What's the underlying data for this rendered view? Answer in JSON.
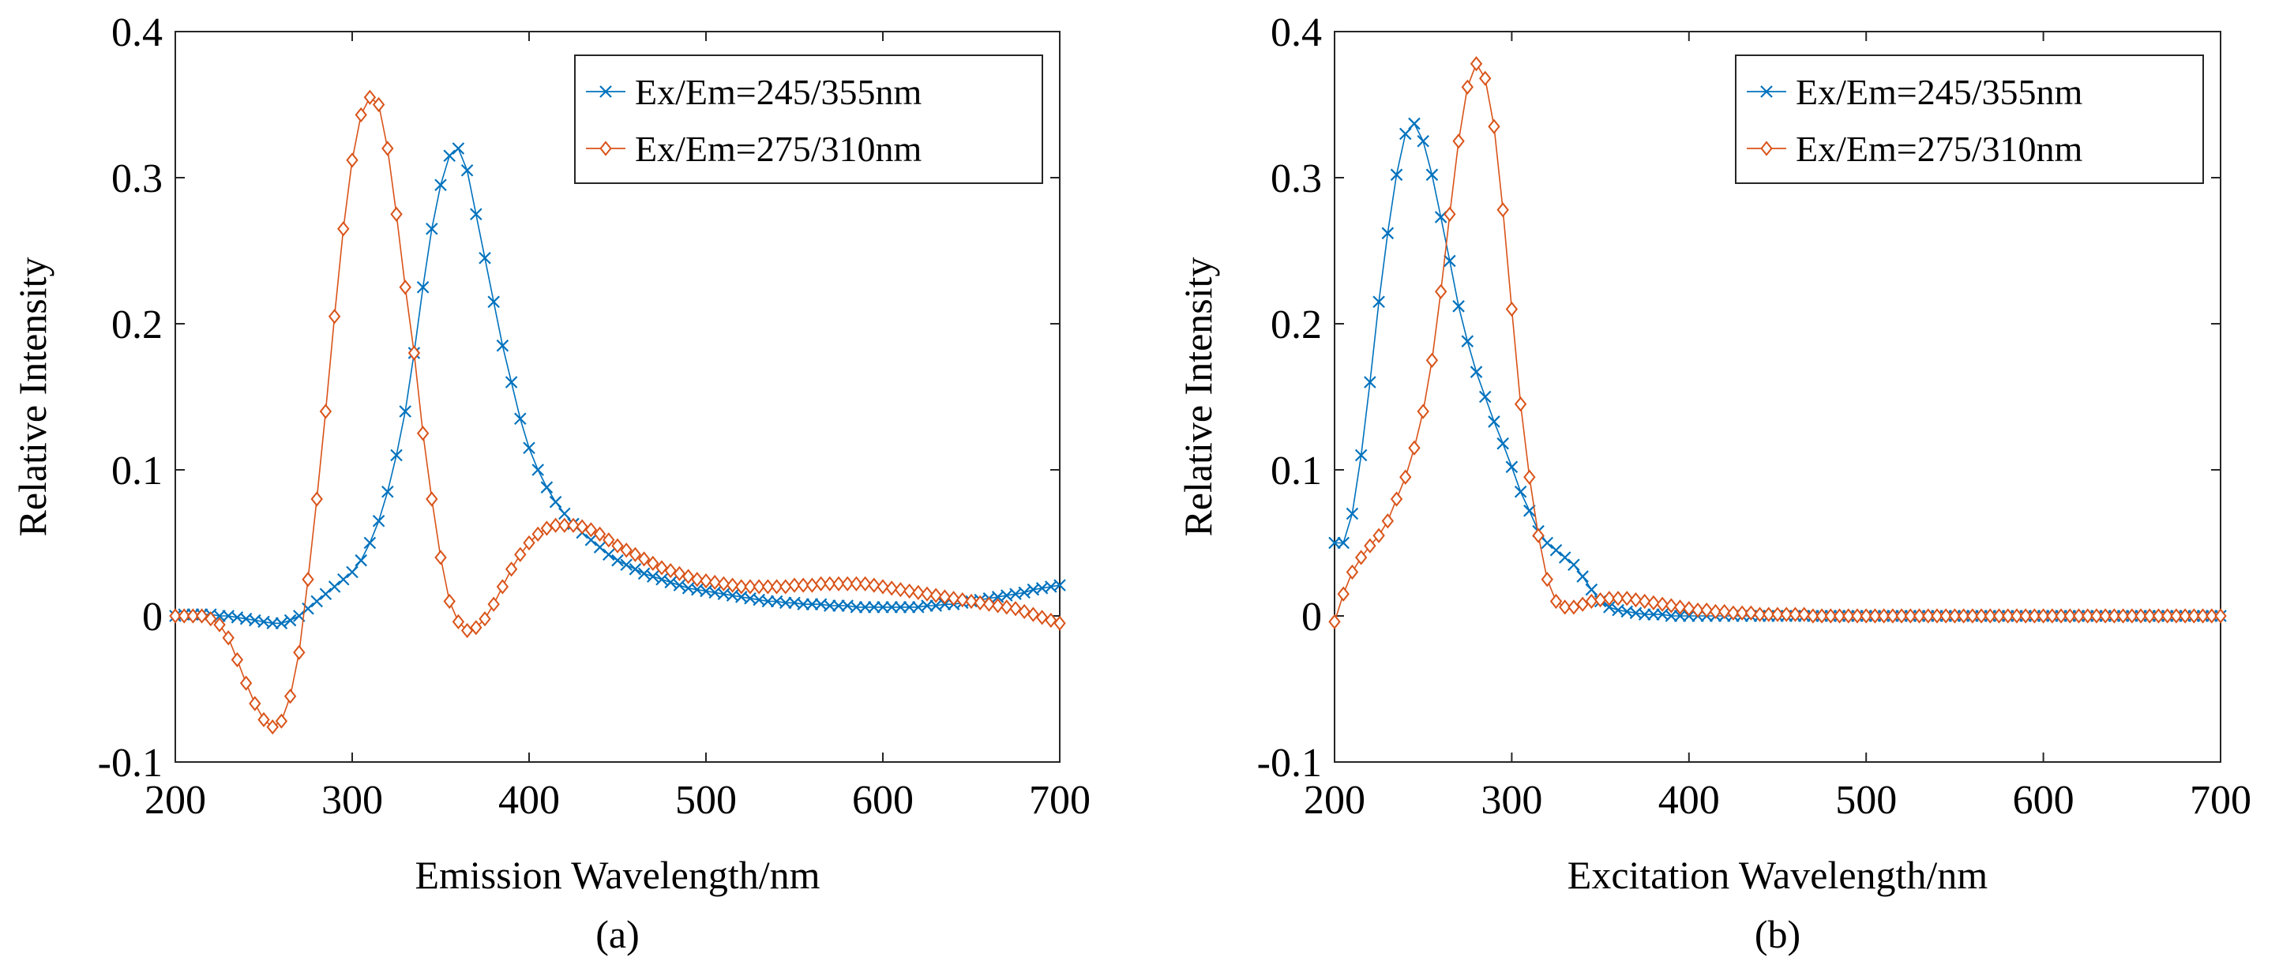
{
  "chart_data": [
    {
      "type": "line",
      "caption": "(a)",
      "xlabel": "Emission Wavelength/nm",
      "ylabel": "Relative Intensity",
      "xlim": [
        200,
        700
      ],
      "ylim": [
        -0.1,
        0.4
      ],
      "xticks": [
        200,
        300,
        400,
        500,
        600,
        700
      ],
      "xtick_labels": [
        "200",
        "300",
        "400",
        "500",
        "600",
        "700"
      ],
      "yticks": [
        -0.1,
        0,
        0.1,
        0.2,
        0.3,
        0.4
      ],
      "ytick_labels": [
        "-0.1",
        "0",
        "0.1",
        "0.2",
        "0.3",
        "0.4"
      ],
      "grid": false,
      "legend_position": "top-right",
      "series": [
        {
          "name": "Ex/Em=245/355nm",
          "color": "#0072BD",
          "marker": "x",
          "x": [
            200,
            205,
            210,
            215,
            220,
            225,
            230,
            235,
            240,
            245,
            250,
            255,
            260,
            265,
            270,
            275,
            280,
            285,
            290,
            295,
            300,
            305,
            310,
            315,
            320,
            325,
            330,
            335,
            340,
            345,
            350,
            355,
            360,
            365,
            370,
            375,
            380,
            385,
            390,
            395,
            400,
            405,
            410,
            415,
            420,
            425,
            430,
            435,
            440,
            445,
            450,
            455,
            460,
            465,
            470,
            475,
            480,
            485,
            490,
            495,
            500,
            505,
            510,
            515,
            520,
            525,
            530,
            535,
            540,
            545,
            550,
            555,
            560,
            565,
            570,
            575,
            580,
            585,
            590,
            595,
            600,
            605,
            610,
            615,
            620,
            625,
            630,
            635,
            640,
            645,
            650,
            655,
            660,
            665,
            670,
            675,
            680,
            685,
            690,
            695,
            700
          ],
          "y": [
            0.0,
            0.001,
            0.001,
            0.001,
            0.001,
            0.0,
            0.0,
            -0.001,
            -0.002,
            -0.003,
            -0.004,
            -0.005,
            -0.005,
            -0.003,
            0.0,
            0.005,
            0.01,
            0.015,
            0.02,
            0.025,
            0.03,
            0.038,
            0.05,
            0.065,
            0.085,
            0.11,
            0.14,
            0.18,
            0.225,
            0.265,
            0.295,
            0.315,
            0.32,
            0.305,
            0.275,
            0.245,
            0.215,
            0.185,
            0.16,
            0.135,
            0.115,
            0.1,
            0.088,
            0.078,
            0.07,
            0.063,
            0.057,
            0.052,
            0.047,
            0.042,
            0.038,
            0.035,
            0.032,
            0.029,
            0.027,
            0.025,
            0.023,
            0.021,
            0.019,
            0.018,
            0.017,
            0.016,
            0.015,
            0.014,
            0.013,
            0.012,
            0.011,
            0.01,
            0.01,
            0.009,
            0.009,
            0.008,
            0.008,
            0.008,
            0.007,
            0.007,
            0.007,
            0.006,
            0.006,
            0.006,
            0.006,
            0.006,
            0.006,
            0.006,
            0.006,
            0.007,
            0.007,
            0.008,
            0.008,
            0.009,
            0.01,
            0.011,
            0.012,
            0.013,
            0.014,
            0.015,
            0.016,
            0.018,
            0.019,
            0.02,
            0.021
          ]
        },
        {
          "name": "Ex/Em=275/310nm",
          "color": "#D95319",
          "marker": "diamond",
          "x": [
            200,
            205,
            210,
            215,
            220,
            225,
            230,
            235,
            240,
            245,
            250,
            255,
            260,
            265,
            270,
            275,
            280,
            285,
            290,
            295,
            300,
            305,
            310,
            315,
            320,
            325,
            330,
            335,
            340,
            345,
            350,
            355,
            360,
            365,
            370,
            375,
            380,
            385,
            390,
            395,
            400,
            405,
            410,
            415,
            420,
            425,
            430,
            435,
            440,
            445,
            450,
            455,
            460,
            465,
            470,
            475,
            480,
            485,
            490,
            495,
            500,
            505,
            510,
            515,
            520,
            525,
            530,
            535,
            540,
            545,
            550,
            555,
            560,
            565,
            570,
            575,
            580,
            585,
            590,
            595,
            600,
            605,
            610,
            615,
            620,
            625,
            630,
            635,
            640,
            645,
            650,
            655,
            660,
            665,
            670,
            675,
            680,
            685,
            690,
            695,
            700
          ],
          "y": [
            0.0,
            0.0,
            0.0,
            0.0,
            -0.002,
            -0.006,
            -0.015,
            -0.03,
            -0.046,
            -0.06,
            -0.071,
            -0.076,
            -0.072,
            -0.055,
            -0.025,
            0.025,
            0.08,
            0.14,
            0.205,
            0.265,
            0.312,
            0.343,
            0.355,
            0.35,
            0.32,
            0.275,
            0.225,
            0.18,
            0.125,
            0.08,
            0.04,
            0.01,
            -0.004,
            -0.01,
            -0.008,
            -0.002,
            0.008,
            0.02,
            0.032,
            0.042,
            0.05,
            0.056,
            0.06,
            0.062,
            0.062,
            0.062,
            0.061,
            0.059,
            0.056,
            0.052,
            0.048,
            0.045,
            0.042,
            0.039,
            0.036,
            0.033,
            0.031,
            0.029,
            0.027,
            0.025,
            0.024,
            0.023,
            0.022,
            0.021,
            0.02,
            0.02,
            0.02,
            0.02,
            0.02,
            0.02,
            0.021,
            0.021,
            0.021,
            0.022,
            0.022,
            0.022,
            0.022,
            0.022,
            0.022,
            0.021,
            0.02,
            0.019,
            0.018,
            0.017,
            0.016,
            0.015,
            0.014,
            0.013,
            0.012,
            0.011,
            0.01,
            0.009,
            0.008,
            0.007,
            0.006,
            0.005,
            0.003,
            0.001,
            -0.001,
            -0.003,
            -0.005
          ]
        }
      ]
    },
    {
      "type": "line",
      "caption": "(b)",
      "xlabel": "Excitation Wavelength/nm",
      "ylabel": "Relative Intensity",
      "xlim": [
        200,
        700
      ],
      "ylim": [
        -0.1,
        0.4
      ],
      "xticks": [
        200,
        300,
        400,
        500,
        600,
        700
      ],
      "xtick_labels": [
        "200",
        "300",
        "400",
        "500",
        "600",
        "700"
      ],
      "yticks": [
        -0.1,
        0,
        0.1,
        0.2,
        0.3,
        0.4
      ],
      "ytick_labels": [
        "-0.1",
        "0",
        "0.1",
        "0.2",
        "0.3",
        "0.4"
      ],
      "grid": false,
      "legend_position": "top-right",
      "series": [
        {
          "name": "Ex/Em=245/355nm",
          "color": "#0072BD",
          "marker": "x",
          "x": [
            200,
            205,
            210,
            215,
            220,
            225,
            230,
            235,
            240,
            245,
            250,
            255,
            260,
            265,
            270,
            275,
            280,
            285,
            290,
            295,
            300,
            305,
            310,
            315,
            320,
            325,
            330,
            335,
            340,
            345,
            350,
            355,
            360,
            365,
            370,
            375,
            380,
            385,
            390,
            395,
            400,
            405,
            410,
            415,
            420,
            425,
            430,
            435,
            440,
            445,
            450,
            455,
            460,
            465,
            470,
            475,
            480,
            485,
            490,
            495,
            500,
            505,
            510,
            515,
            520,
            525,
            530,
            535,
            540,
            545,
            550,
            555,
            560,
            565,
            570,
            575,
            580,
            585,
            590,
            595,
            600,
            605,
            610,
            615,
            620,
            625,
            630,
            635,
            640,
            645,
            650,
            655,
            660,
            665,
            670,
            675,
            680,
            685,
            690,
            695,
            700
          ],
          "y": [
            0.05,
            0.05,
            0.07,
            0.11,
            0.16,
            0.215,
            0.262,
            0.302,
            0.33,
            0.337,
            0.325,
            0.302,
            0.273,
            0.243,
            0.212,
            0.188,
            0.167,
            0.15,
            0.133,
            0.118,
            0.102,
            0.085,
            0.072,
            0.058,
            0.05,
            0.045,
            0.04,
            0.035,
            0.027,
            0.018,
            0.01,
            0.006,
            0.004,
            0.003,
            0.002,
            0.001,
            0.001,
            0.001,
            0.0,
            0.0,
            0.0,
            0.0,
            0.0,
            0.0,
            0.0,
            0.0,
            0.0,
            0.0,
            0.0,
            0.0,
            0.0,
            0.0,
            0.0,
            0.0,
            0.0,
            0.0,
            0.0,
            0.0,
            0.0,
            0.0,
            0.0,
            0.0,
            0.0,
            0.0,
            0.0,
            0.0,
            0.0,
            0.0,
            0.0,
            0.0,
            0.0,
            0.0,
            0.0,
            0.0,
            0.0,
            0.0,
            0.0,
            0.0,
            0.0,
            0.0,
            0.0,
            0.0,
            0.0,
            0.0,
            0.0,
            0.0,
            0.0,
            0.0,
            0.0,
            0.0,
            0.0,
            0.0,
            0.0,
            0.0,
            0.0,
            0.0,
            0.0,
            0.0,
            0.0,
            0.0,
            0.0
          ]
        },
        {
          "name": "Ex/Em=275/310nm",
          "color": "#D95319",
          "marker": "diamond",
          "x": [
            200,
            205,
            210,
            215,
            220,
            225,
            230,
            235,
            240,
            245,
            250,
            255,
            260,
            265,
            270,
            275,
            280,
            285,
            290,
            295,
            300,
            305,
            310,
            315,
            320,
            325,
            330,
            335,
            340,
            345,
            350,
            355,
            360,
            365,
            370,
            375,
            380,
            385,
            390,
            395,
            400,
            405,
            410,
            415,
            420,
            425,
            430,
            435,
            440,
            445,
            450,
            455,
            460,
            465,
            470,
            475,
            480,
            485,
            490,
            495,
            500,
            505,
            510,
            515,
            520,
            525,
            530,
            535,
            540,
            545,
            550,
            555,
            560,
            565,
            570,
            575,
            580,
            585,
            590,
            595,
            600,
            605,
            610,
            615,
            620,
            625,
            630,
            635,
            640,
            645,
            650,
            655,
            660,
            665,
            670,
            675,
            680,
            685,
            690,
            695,
            700
          ],
          "y": [
            -0.004,
            0.015,
            0.03,
            0.04,
            0.048,
            0.055,
            0.065,
            0.08,
            0.095,
            0.115,
            0.14,
            0.175,
            0.222,
            0.275,
            0.325,
            0.362,
            0.378,
            0.368,
            0.335,
            0.278,
            0.21,
            0.145,
            0.095,
            0.055,
            0.025,
            0.01,
            0.006,
            0.006,
            0.008,
            0.01,
            0.011,
            0.012,
            0.012,
            0.012,
            0.011,
            0.01,
            0.009,
            0.008,
            0.007,
            0.006,
            0.005,
            0.004,
            0.004,
            0.003,
            0.003,
            0.002,
            0.002,
            0.002,
            0.001,
            0.001,
            0.001,
            0.001,
            0.001,
            0.001,
            0.0,
            0.0,
            0.0,
            0.0,
            0.0,
            0.0,
            0.0,
            0.0,
            0.0,
            0.0,
            0.0,
            0.0,
            0.0,
            0.0,
            0.0,
            0.0,
            0.0,
            0.0,
            0.0,
            0.0,
            0.0,
            0.0,
            0.0,
            0.0,
            0.0,
            0.0,
            0.0,
            0.0,
            0.0,
            0.0,
            0.0,
            0.0,
            0.0,
            0.0,
            0.0,
            0.0,
            0.0,
            0.0,
            0.0,
            0.0,
            0.0,
            0.0,
            0.0,
            0.0,
            0.0,
            0.0,
            0.0
          ]
        }
      ]
    }
  ]
}
